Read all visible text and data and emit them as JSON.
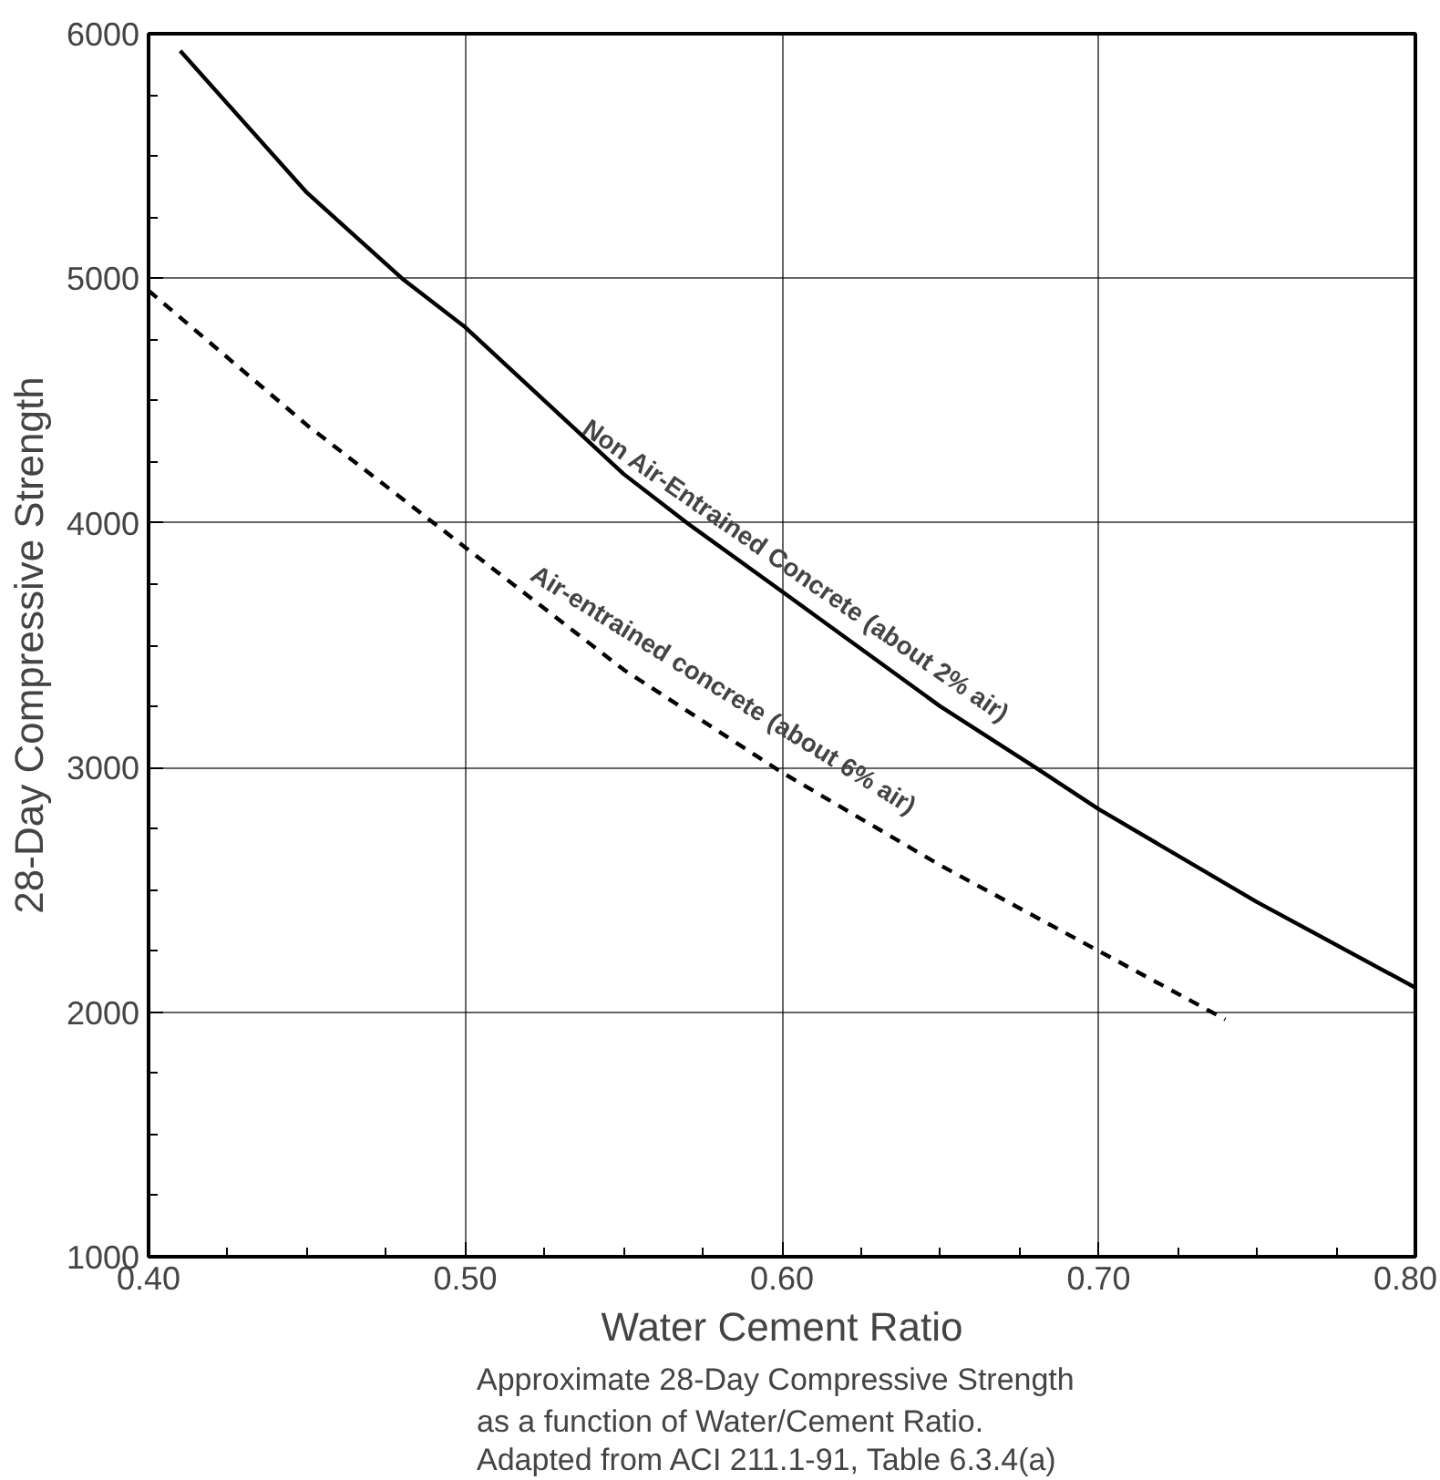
{
  "chart_data": {
    "type": "line",
    "xlabel": "Water Cement Ratio",
    "ylabel": "28-Day Compressive Strength",
    "xlim": [
      0.4,
      0.8
    ],
    "ylim": [
      1000,
      6000
    ],
    "xticks": [
      {
        "value": 0.4,
        "label": "0.40"
      },
      {
        "value": 0.5,
        "label": "0.50"
      },
      {
        "value": 0.6,
        "label": "0.60"
      },
      {
        "value": 0.7,
        "label": "0.70"
      },
      {
        "value": 0.8,
        "label": "0.80"
      }
    ],
    "yticks": [
      1000,
      2000,
      3000,
      4000,
      5000,
      6000
    ],
    "grid": true,
    "marker": "none",
    "series": [
      {
        "color": "#000000",
        "line_style": "solid",
        "x": [
          0.41,
          0.45,
          0.48,
          0.5,
          0.55,
          0.57,
          0.6,
          0.65,
          0.68,
          0.7,
          0.75,
          0.8
        ],
        "values": [
          5930,
          5350,
          5000,
          4800,
          4200,
          4000,
          3720,
          3250,
          3000,
          2830,
          2450,
          2100
        ]
      },
      {
        "color": "#000000",
        "line_style": "dashed",
        "x": [
          0.4,
          0.45,
          0.48,
          0.5,
          0.55,
          0.6,
          0.65,
          0.7,
          0.74
        ],
        "values": [
          4950,
          4400,
          4100,
          3900,
          3400,
          2980,
          2600,
          2250,
          1970
        ]
      }
    ],
    "annotations": [
      {
        "text": "Non Air-Entrained Concrete (about 2% air)",
        "x": 0.6,
        "y": 3720
      },
      {
        "text": "Air-entrained concrete (about 6% air)",
        "x": 0.575,
        "y": 3180
      },
      "Approximate 28-Day Compressive Strength",
      "as a function of Water/Cement Ratio.",
      "Adapted from ACI 211.1-91, Table 6.3.4(a)"
    ]
  }
}
